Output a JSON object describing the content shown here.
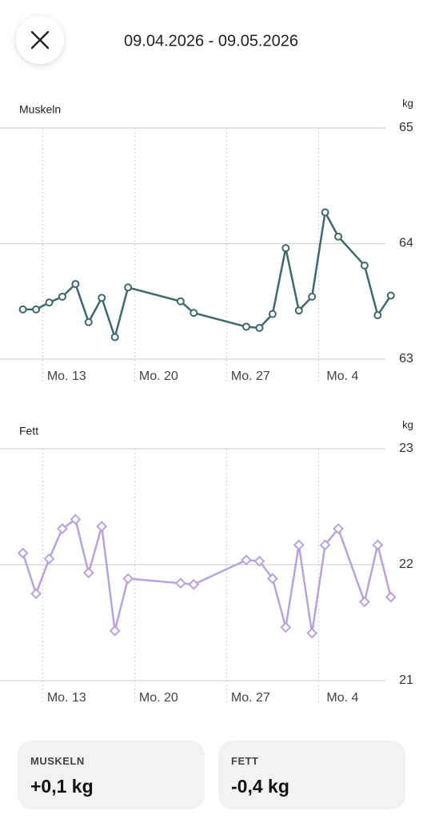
{
  "header": {
    "date_range": "09.04.2026 - 09.05.2026"
  },
  "chart_data": [
    {
      "type": "line",
      "title": "Muskeln",
      "y_unit": "kg",
      "marker": "circle",
      "grid": true,
      "x": [
        "2026-04-11",
        "2026-04-12",
        "2026-04-13",
        "2026-04-14",
        "2026-04-15",
        "2026-04-16",
        "2026-04-17",
        "2026-04-18",
        "2026-04-19",
        "2026-04-23",
        "2026-04-24",
        "2026-04-28",
        "2026-04-29",
        "2026-04-30",
        "2026-05-01",
        "2026-05-02",
        "2026-05-03",
        "2026-05-04",
        "2026-05-05",
        "2026-05-07",
        "2026-05-08",
        "2026-05-09"
      ],
      "series": [
        {
          "color": "#3e6a6d",
          "values": [
            63.43,
            63.43,
            63.49,
            63.54,
            63.65,
            63.32,
            63.53,
            63.19,
            63.62,
            63.5,
            63.4,
            63.28,
            63.27,
            63.39,
            63.96,
            63.42,
            63.54,
            64.27,
            64.06,
            63.81,
            63.38,
            63.55
          ]
        }
      ],
      "xlim": [
        "2026-04-10",
        "2026-05-10"
      ],
      "xticks": [
        {
          "value": "2026-04-13",
          "label": "Mo. 13"
        },
        {
          "value": "2026-04-20",
          "label": "Mo. 20"
        },
        {
          "value": "2026-04-27",
          "label": "Mo. 27"
        },
        {
          "value": "2026-05-04",
          "label": "Mo. 4"
        }
      ],
      "ylim": [
        63,
        65
      ],
      "yticks": [
        63,
        64,
        65
      ]
    },
    {
      "type": "line",
      "title": "Fett",
      "y_unit": "kg",
      "marker": "diamond",
      "grid": true,
      "x": [
        "2026-04-11",
        "2026-04-12",
        "2026-04-13",
        "2026-04-14",
        "2026-04-15",
        "2026-04-16",
        "2026-04-17",
        "2026-04-18",
        "2026-04-19",
        "2026-04-23",
        "2026-04-24",
        "2026-04-28",
        "2026-04-29",
        "2026-04-30",
        "2026-05-01",
        "2026-05-02",
        "2026-05-03",
        "2026-05-04",
        "2026-05-05",
        "2026-05-07",
        "2026-05-08",
        "2026-05-09"
      ],
      "series": [
        {
          "color": "#b9a2de",
          "values": [
            22.1,
            21.75,
            22.05,
            22.31,
            22.39,
            21.93,
            22.33,
            21.43,
            21.88,
            21.84,
            21.83,
            22.04,
            22.03,
            21.88,
            21.46,
            22.17,
            21.41,
            22.17,
            22.31,
            21.68,
            22.17,
            21.72
          ]
        }
      ],
      "xlim": [
        "2026-04-10",
        "2026-05-10"
      ],
      "xticks": [
        {
          "value": "2026-04-13",
          "label": "Mo. 13"
        },
        {
          "value": "2026-04-20",
          "label": "Mo. 20"
        },
        {
          "value": "2026-04-27",
          "label": "Mo. 27"
        },
        {
          "value": "2026-05-04",
          "label": "Mo. 4"
        }
      ],
      "ylim": [
        21,
        23
      ],
      "yticks": [
        21,
        22,
        23
      ]
    }
  ],
  "summary": [
    {
      "label": "MUSKELN",
      "value": "+0,1 kg"
    },
    {
      "label": "FETT",
      "value": "-0,4 kg"
    }
  ]
}
